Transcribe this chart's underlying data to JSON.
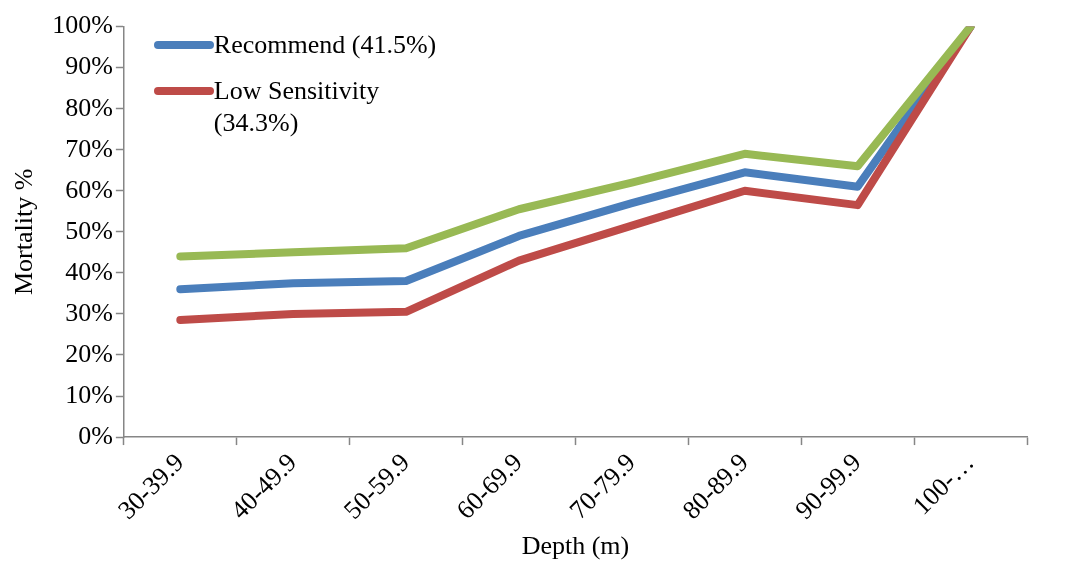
{
  "chart_data": {
    "type": "line",
    "xlabel": "Depth (m)",
    "ylabel": "Mortality %",
    "categories": [
      "30-39.9",
      "40-49.9",
      "50-59.9",
      "60-69.9",
      "70-79.9",
      "80-89.9",
      "90-99.9",
      "100-…"
    ],
    "series": [
      {
        "name": "Recommend (41.5%)",
        "color": "#4a7ebb",
        "values": [
          36,
          37.5,
          38,
          49,
          57,
          64.5,
          61,
          100
        ]
      },
      {
        "name": "Low Sensitivity (34.3%)",
        "color": "#be4b48",
        "values": [
          28.5,
          30,
          30.5,
          43,
          51.5,
          60,
          56.5,
          100
        ]
      },
      {
        "color": "#98b954",
        "values": [
          44,
          45,
          46,
          55.5,
          62,
          69,
          66,
          100
        ]
      }
    ],
    "ylim": [
      0,
      100
    ],
    "yticks": [
      {
        "value": 0,
        "label": "0%"
      },
      {
        "value": 10,
        "label": "10%"
      },
      {
        "value": 20,
        "label": "20%"
      },
      {
        "value": 30,
        "label": "30%"
      },
      {
        "value": 40,
        "label": "40%"
      },
      {
        "value": 50,
        "label": "50%"
      },
      {
        "value": 60,
        "label": "60%"
      },
      {
        "value": 70,
        "label": "70%"
      },
      {
        "value": 80,
        "label": "80%"
      },
      {
        "value": 90,
        "label": "90%"
      },
      {
        "value": 100,
        "label": "100%"
      }
    ],
    "grid": false,
    "legend": "top left",
    "marker": "none"
  }
}
